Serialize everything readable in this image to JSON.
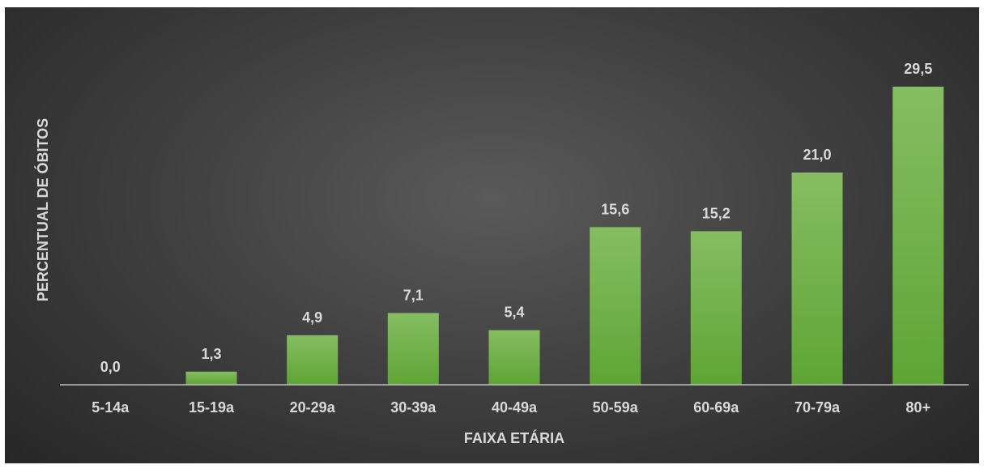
{
  "chart_data": {
    "type": "bar",
    "categories": [
      "5-14a",
      "15-19a",
      "20-29a",
      "30-39a",
      "40-49a",
      "50-59a",
      "60-69a",
      "70-79a",
      "80+"
    ],
    "values": [
      0.0,
      1.3,
      4.9,
      7.1,
      5.4,
      15.6,
      15.2,
      21.0,
      29.5
    ],
    "value_labels": [
      "0,0",
      "1,3",
      "4,9",
      "7,1",
      "5,4",
      "15,6",
      "15,2",
      "21,0",
      "29,5"
    ],
    "title": "",
    "xlabel": "FAIXA ETÁRIA",
    "ylabel": "PERCENTUAL DE ÓBITOS",
    "ylim": [
      0,
      29.5
    ],
    "grid": false,
    "legend": "none",
    "colors": {
      "bar_top": "#86bd62",
      "bar_bottom": "#5ea535",
      "axis": "#bfbfbf",
      "text": "#d9d9d9",
      "background_center": "#5a5a5a",
      "background_edge": "#262626"
    }
  }
}
